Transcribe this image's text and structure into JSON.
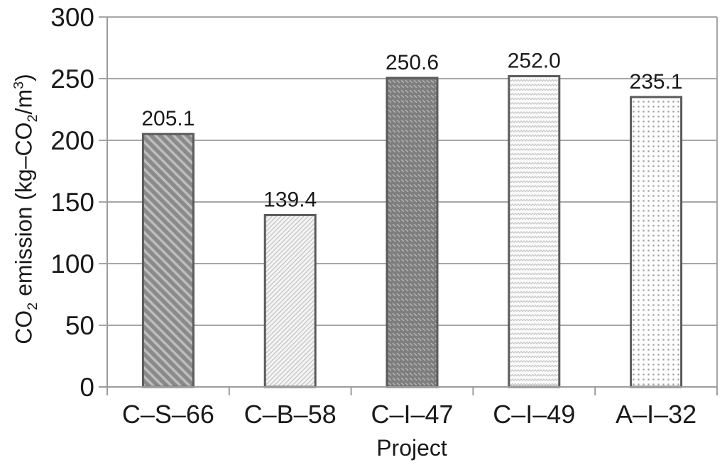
{
  "chart_data": {
    "type": "bar",
    "title": "",
    "xlabel": "Project",
    "ylabel": "CO2 emission (kg–CO2/m3)",
    "ylabel_parts": {
      "pre": "CO",
      "sub1": "2",
      "mid1": " emission (kg–CO",
      "sub2": "2",
      "mid2": "/m",
      "sup1": "3",
      "post": ")"
    },
    "categories": [
      "C–S–66",
      "C–B–58",
      "C–I–47",
      "C–I–49",
      "A–I–32"
    ],
    "values": [
      205.1,
      139.4,
      250.6,
      252.0,
      235.1
    ],
    "value_labels": [
      "205.1",
      "139.4",
      "250.6",
      "252.0",
      "235.1"
    ],
    "ylim": [
      0,
      300
    ],
    "yticks": [
      0,
      50,
      100,
      150,
      200,
      250,
      300
    ],
    "grid": "horizontal",
    "legend": "none",
    "bar_patterns": [
      "dark-diagonal-stripes",
      "light-diagonal-hatch",
      "dark-dash-rows",
      "light-zigzag-wave",
      "light-dot-grid"
    ]
  },
  "colors": {
    "background": "#ffffff",
    "grid": "#a6a6a6",
    "axis": "#9c9c9c",
    "bar_border": "#5b5b5b",
    "text": "#1a1a1a",
    "bar1_base": "#8a8a8a",
    "bar1_stripe": "#bdbdbd",
    "bar2_base": "#f4f4f4",
    "bar2_stripe": "#c8c8c8",
    "bar3_base": "#7e7e7e",
    "bar3_dash": "#b2b2b2",
    "bar4_base": "#fbfbfb",
    "bar4_wave": "#c6c6c6",
    "bar5_base": "#fdfdfd",
    "bar5_dot": "#9a9a9a"
  }
}
